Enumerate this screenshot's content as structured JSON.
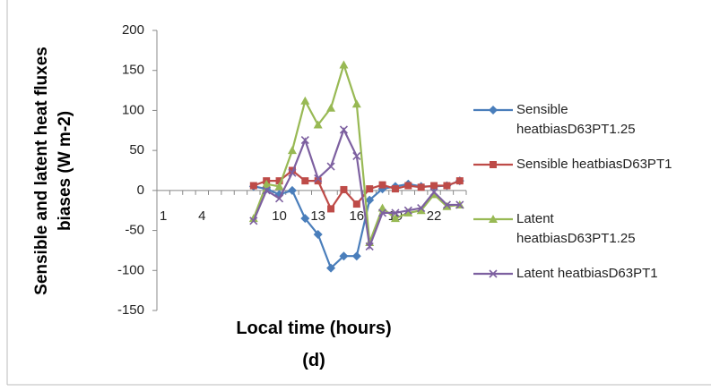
{
  "chart_data": {
    "type": "line",
    "y_label": "Sensible and latent heat fluxes biases (W m-2)",
    "x_label": "Local time (hours)",
    "subtitle": "(d)",
    "categories": [
      "1",
      null,
      null,
      "4",
      null,
      null,
      null,
      null,
      null,
      "10",
      null,
      null,
      "13",
      null,
      null,
      "16",
      null,
      null,
      "19",
      null,
      null,
      "22",
      null,
      null
    ],
    "series": [
      {
        "name": "Sensible heatbiasD63PT1.25",
        "color": "#4a7ebb",
        "marker": "diamond",
        "values": [
          null,
          null,
          null,
          null,
          null,
          null,
          null,
          5,
          2,
          -5,
          0,
          -35,
          -55,
          -97,
          -82,
          -82,
          -12,
          2,
          5,
          8,
          5,
          5,
          6,
          12
        ]
      },
      {
        "name": "Sensible heatbiasD63PT1",
        "color": "#be4b48",
        "marker": "square",
        "values": [
          null,
          null,
          null,
          null,
          null,
          null,
          null,
          6,
          12,
          12,
          25,
          12,
          12,
          -23,
          1,
          -17,
          2,
          7,
          2,
          6,
          4,
          6,
          6,
          12
        ]
      },
      {
        "name": "Latent heatbiasD63PT1.25",
        "color": "#98b954",
        "marker": "triangle",
        "values": [
          null,
          null,
          null,
          null,
          null,
          null,
          null,
          -35,
          8,
          5,
          50,
          112,
          82,
          103,
          157,
          108,
          -65,
          -22,
          -35,
          -28,
          -25,
          -5,
          -20,
          -18
        ]
      },
      {
        "name": "Latent heatbiasD63PT1",
        "color": "#7d60a0",
        "marker": "x",
        "values": [
          null,
          null,
          null,
          null,
          null,
          null,
          null,
          -38,
          0,
          -10,
          22,
          63,
          15,
          30,
          76,
          43,
          -70,
          -28,
          -28,
          -25,
          -22,
          -2,
          -18,
          -18
        ]
      }
    ],
    "ylim": [
      -150,
      200
    ],
    "yticks": [
      -150,
      -100,
      -50,
      0,
      50,
      100,
      150,
      200
    ],
    "grid": false,
    "legend": "right"
  }
}
